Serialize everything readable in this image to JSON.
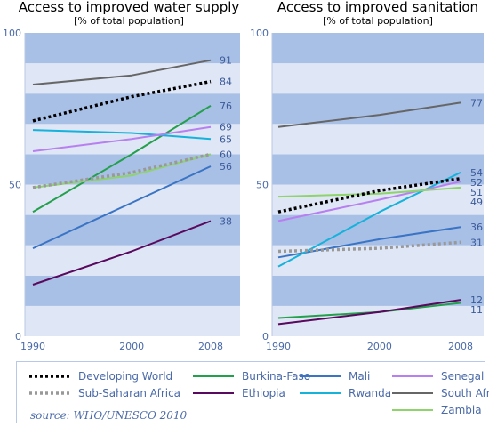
{
  "chart_data": [
    {
      "type": "line",
      "title": "Access to improved water supply",
      "subtitle": "[% of total population]",
      "x": [
        1990,
        2000,
        2008
      ],
      "x_ticks": [
        "1990",
        "2000",
        "2008"
      ],
      "ylim": [
        0,
        100
      ],
      "y_ticks": [
        "0",
        "50",
        "100"
      ],
      "series": [
        {
          "name": "Developing World",
          "values": [
            71,
            79,
            84
          ],
          "end_label": "84"
        },
        {
          "name": "Sub-Saharan Africa",
          "values": [
            49,
            54,
            60
          ],
          "end_label": "60"
        },
        {
          "name": "Burkina-Faso",
          "values": [
            41,
            60,
            76
          ],
          "end_label": "76"
        },
        {
          "name": "Ethiopia",
          "values": [
            17,
            28,
            38
          ],
          "end_label": "38"
        },
        {
          "name": "Mali",
          "values": [
            29,
            44,
            56
          ],
          "end_label": "56"
        },
        {
          "name": "Rwanda",
          "values": [
            68,
            67,
            65
          ],
          "end_label": "65"
        },
        {
          "name": "Senegal",
          "values": [
            61,
            65,
            69
          ],
          "end_label": "69"
        },
        {
          "name": "South Africa",
          "values": [
            83,
            86,
            91
          ],
          "end_label": "91"
        },
        {
          "name": "Zambia",
          "values": [
            49,
            53,
            60
          ],
          "end_label": ""
        }
      ]
    },
    {
      "type": "line",
      "title": "Access to improved sanitation",
      "subtitle": "[% of total population]",
      "x": [
        1990,
        2000,
        2008
      ],
      "x_ticks": [
        "1990",
        "2000",
        "2008"
      ],
      "ylim": [
        0,
        100
      ],
      "y_ticks": [
        "0",
        "50",
        "100"
      ],
      "series": [
        {
          "name": "Developing World",
          "values": [
            41,
            48,
            52
          ],
          "end_label": "52"
        },
        {
          "name": "Sub-Saharan Africa",
          "values": [
            28,
            29,
            31
          ],
          "end_label": "31"
        },
        {
          "name": "Burkina-Faso",
          "values": [
            6,
            8,
            11
          ],
          "end_label": "11"
        },
        {
          "name": "Ethiopia",
          "values": [
            4,
            8,
            12
          ],
          "end_label": "12"
        },
        {
          "name": "Mali",
          "values": [
            26,
            32,
            36
          ],
          "end_label": "36"
        },
        {
          "name": "Rwanda",
          "values": [
            23,
            41,
            54
          ],
          "end_label": "54"
        },
        {
          "name": "Senegal",
          "values": [
            38,
            45,
            51
          ],
          "end_label": "51"
        },
        {
          "name": "South Africa",
          "values": [
            69,
            73,
            77
          ],
          "end_label": "77"
        },
        {
          "name": "Zambia",
          "values": [
            46,
            47,
            49
          ],
          "end_label": "49"
        }
      ]
    }
  ],
  "legend": [
    {
      "name": "Developing World",
      "color": "#000000",
      "dash": "dotted"
    },
    {
      "name": "Sub-Saharan Africa",
      "color": "#999999",
      "dash": "dotted"
    },
    {
      "name": "Burkina-Faso",
      "color": "#22a04b",
      "dash": "solid"
    },
    {
      "name": "Ethiopia",
      "color": "#5a0a5e",
      "dash": "solid"
    },
    {
      "name": "Mali",
      "color": "#3a74c4",
      "dash": "solid"
    },
    {
      "name": "Rwanda",
      "color": "#15b2db",
      "dash": "solid"
    },
    {
      "name": "Senegal",
      "color": "#b77ff0",
      "dash": "solid"
    },
    {
      "name": "South Africa",
      "color": "#666666",
      "dash": "solid"
    },
    {
      "name": "Zambia",
      "color": "#8ed36b",
      "dash": "solid"
    }
  ],
  "source": "source: WHO/UNESCO 2010",
  "colors": {
    "band_dark": "#a8bfe6",
    "band_light": "#dfe6f5",
    "label_text": "#3a5a9a",
    "axis_text": "#4a6aa8"
  }
}
